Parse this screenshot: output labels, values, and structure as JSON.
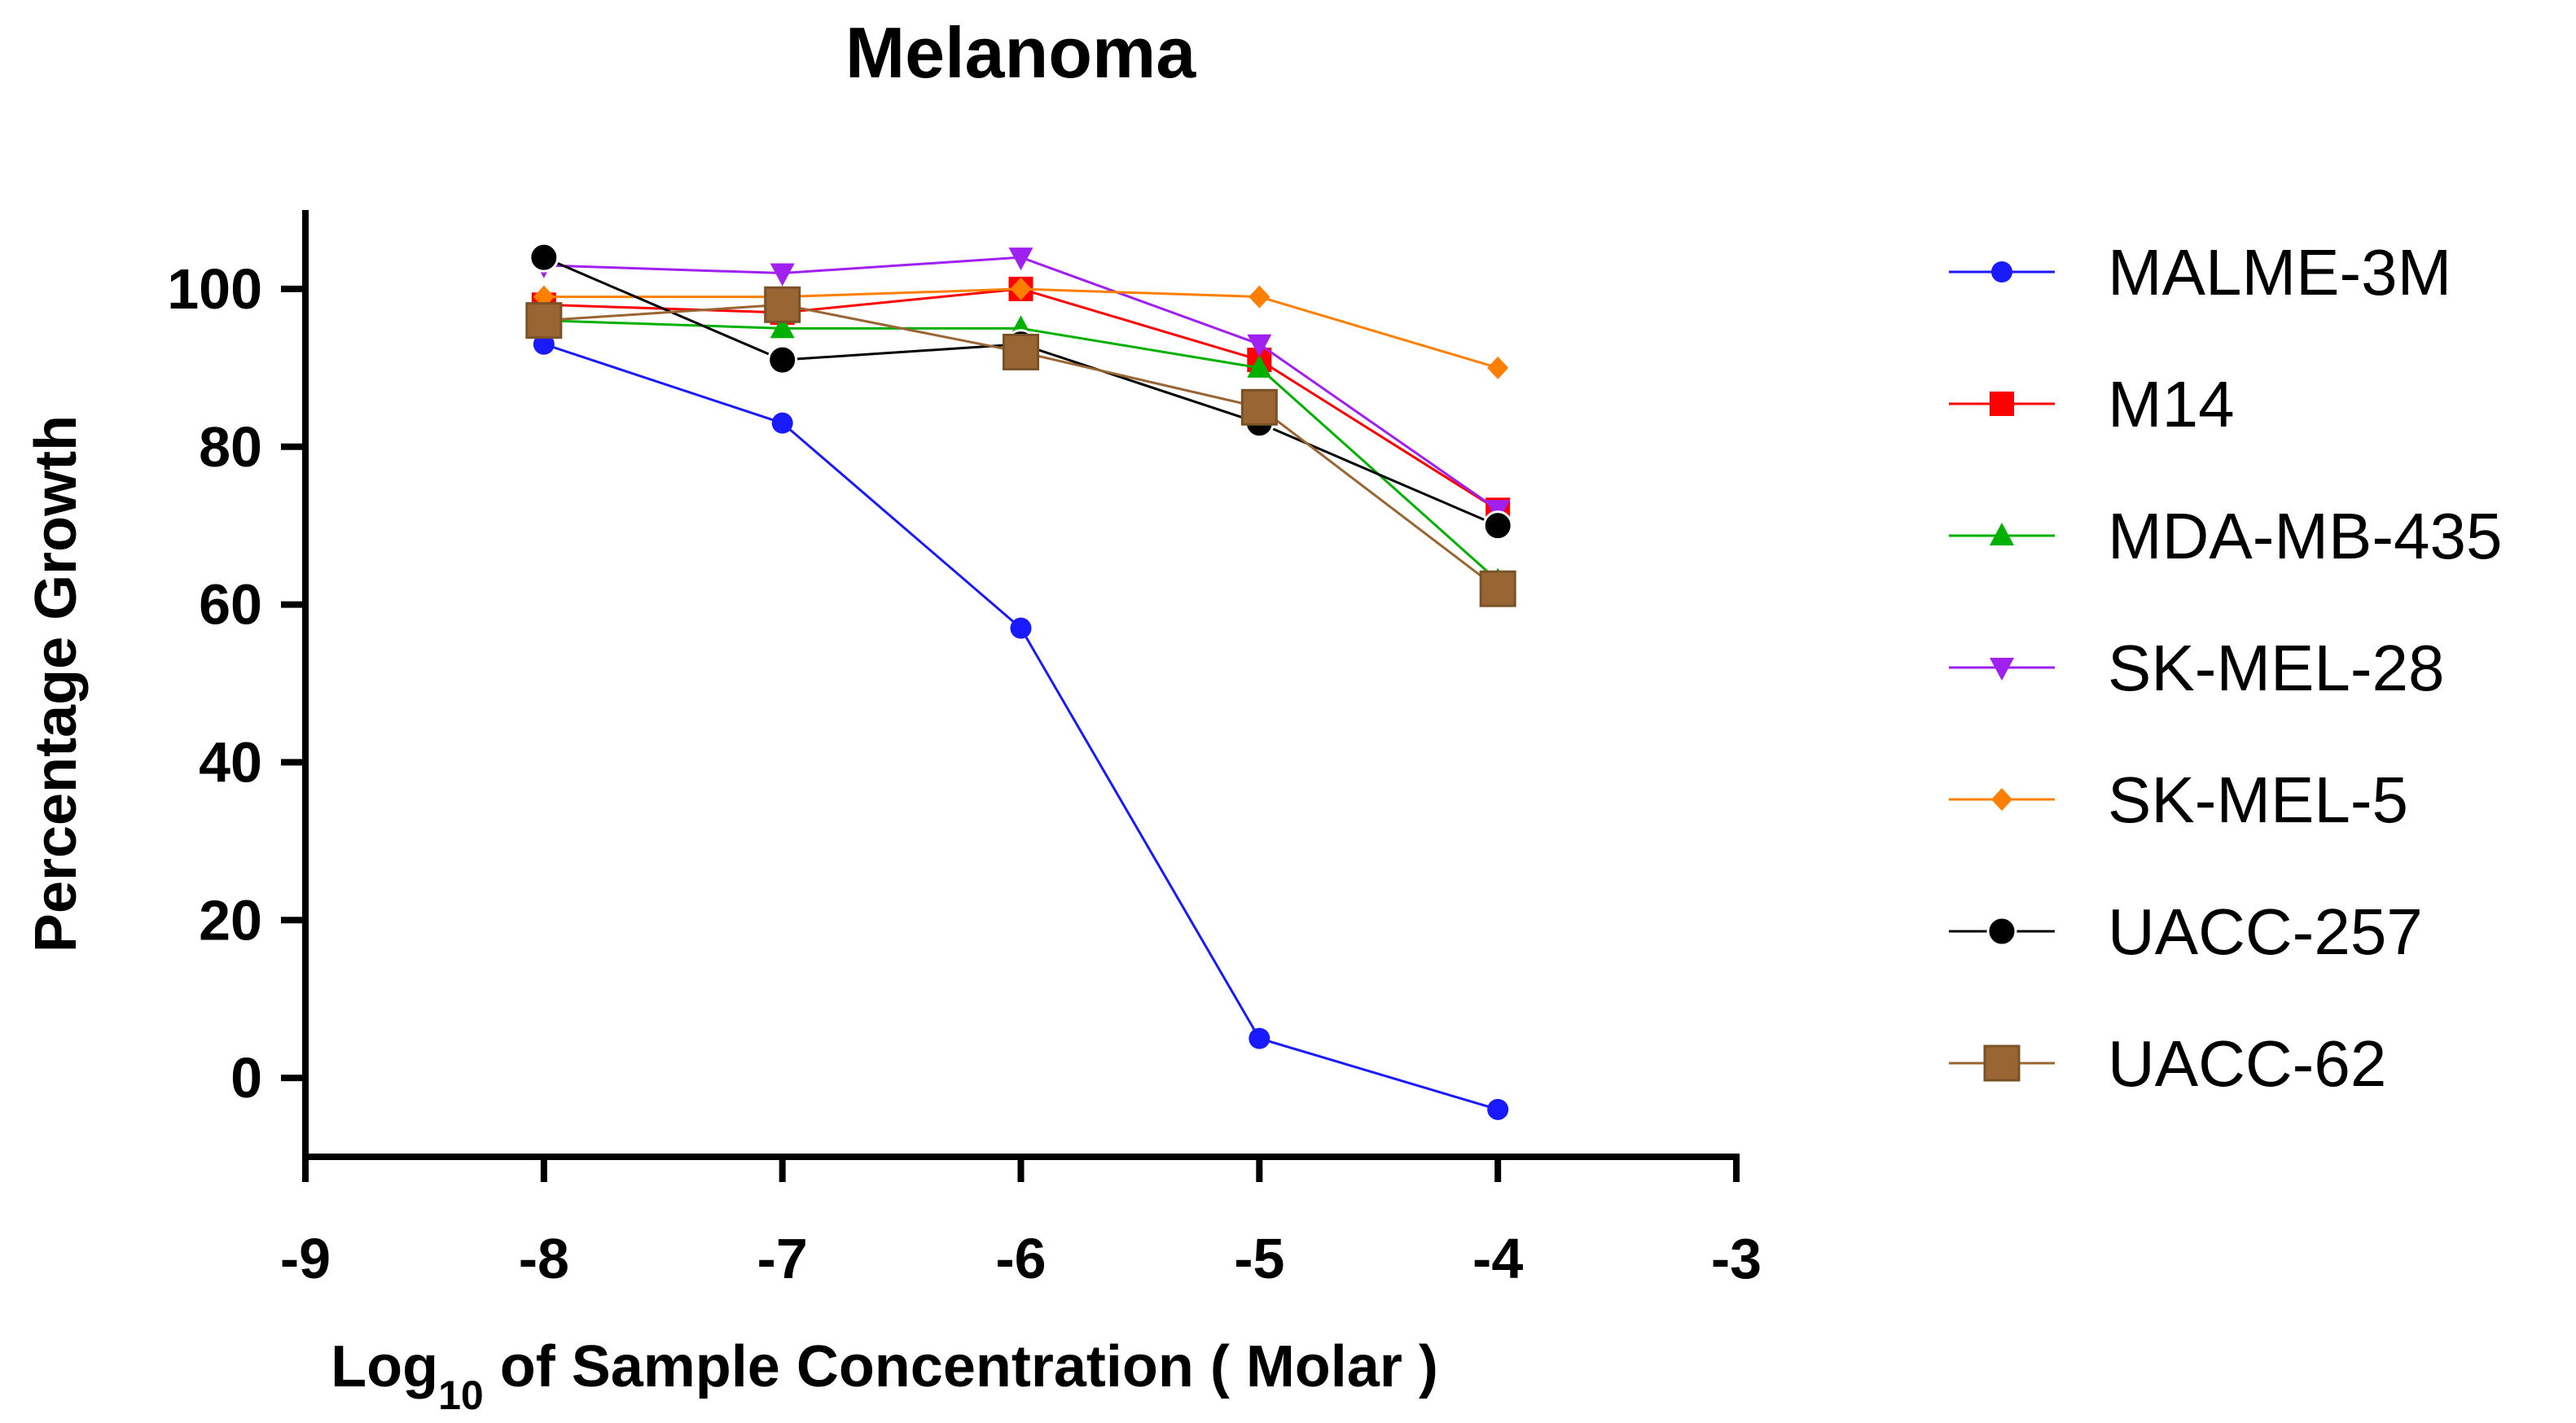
{
  "chart_data": {
    "type": "line",
    "title": "Melanoma",
    "xlabel_main": "Log",
    "xlabel_sub": "10",
    "xlabel_rest": " of Sample Concentration ( Molar )",
    "ylabel": "Percentage Growth",
    "xlim": [
      -9,
      -3
    ],
    "ylim": [
      -10,
      110
    ],
    "xticks": [
      -9,
      -8,
      -7,
      -6,
      -5,
      -4,
      -3
    ],
    "yticks": [
      0,
      20,
      40,
      60,
      80,
      100
    ],
    "x": [
      -8,
      -7,
      -6,
      -5,
      -4
    ],
    "series": [
      {
        "name": "MALME-3M",
        "color": "#1a1aff",
        "marker": "circle-small",
        "values": [
          93,
          83,
          57,
          5,
          -4
        ]
      },
      {
        "name": "M14",
        "color": "#ff0000",
        "marker": "square",
        "values": [
          98,
          97,
          100,
          91,
          72
        ]
      },
      {
        "name": "MDA-MB-435",
        "color": "#00b000",
        "marker": "triangle-up",
        "values": [
          96,
          95,
          95,
          90,
          63
        ]
      },
      {
        "name": "SK-MEL-28",
        "color": "#a020f0",
        "marker": "triangle-down",
        "values": [
          103,
          102,
          104,
          93,
          72
        ]
      },
      {
        "name": "SK-MEL-5",
        "color": "#ff8000",
        "marker": "diamond",
        "values": [
          99,
          99,
          100,
          99,
          90
        ]
      },
      {
        "name": "UACC-257",
        "color": "#000000",
        "marker": "circle",
        "values": [
          104,
          91,
          93,
          83,
          70
        ]
      },
      {
        "name": "UACC-62",
        "color": "#996633",
        "marker": "square-large",
        "values": [
          96,
          98,
          92,
          85,
          62
        ]
      }
    ],
    "legend_position": "right"
  }
}
